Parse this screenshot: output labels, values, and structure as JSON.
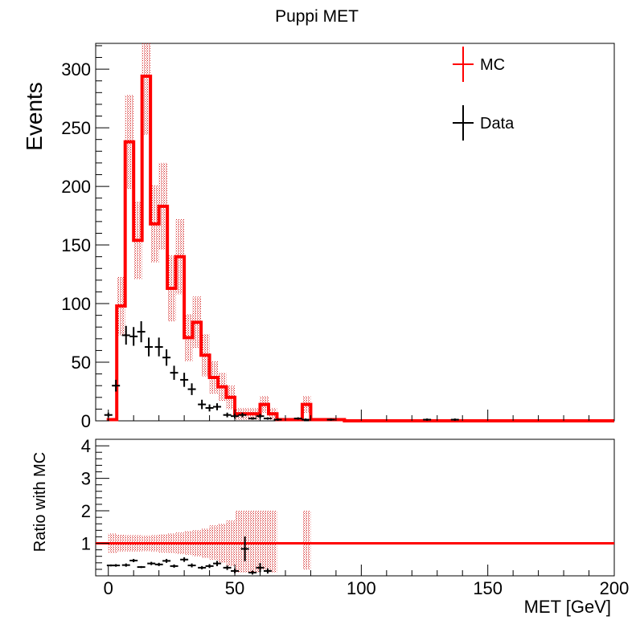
{
  "chart_data": {
    "type": "histogram",
    "title": "Puppi MET",
    "x_bin_width": 3.33,
    "x_bin_starts": [
      0,
      3.33,
      6.67,
      10,
      13.33,
      16.67,
      20,
      23.33,
      26.67,
      30,
      33.33,
      36.67,
      40,
      43.33,
      46.67,
      50,
      53.33,
      56.67,
      60,
      63.33,
      66.67,
      70,
      73.33,
      76.67,
      80,
      83.33,
      86.67,
      90
    ],
    "xlim": [
      -5,
      200
    ],
    "top_panel": {
      "ylabel": "Events",
      "ylim": [
        0,
        322
      ],
      "y_ticks": [
        0,
        50,
        100,
        150,
        200,
        250,
        300
      ],
      "legend": {
        "placement": "top-right",
        "entries": [
          {
            "label": "MC",
            "color": "#ff0000"
          },
          {
            "label": "Data",
            "color": "#000000"
          }
        ]
      },
      "series": [
        {
          "name": "MC",
          "color": "#ff0000",
          "style": "step",
          "values": [
            1,
            98,
            238,
            154,
            294,
            168,
            183,
            113,
            140,
            71,
            84,
            56,
            37,
            29,
            20,
            6,
            6,
            6,
            14,
            6,
            1,
            1,
            1,
            14,
            1,
            1,
            1,
            1
          ],
          "uncertainty": [
            1,
            25,
            40,
            33,
            50,
            33,
            37,
            28,
            32,
            20,
            22,
            18,
            14,
            12,
            10,
            5,
            5,
            5,
            7,
            5,
            1,
            1,
            1,
            7,
            1,
            1,
            1,
            1
          ]
        },
        {
          "name": "Data",
          "color": "#000000",
          "style": "points",
          "x": [
            0,
            3,
            7,
            10,
            13,
            16,
            20,
            23,
            26,
            30,
            33,
            37,
            40,
            43,
            47,
            50,
            53,
            57,
            60,
            63,
            67,
            75,
            78,
            88,
            126,
            137
          ],
          "y": [
            5,
            30,
            73,
            72,
            76,
            63,
            63,
            54,
            41,
            35,
            27,
            14,
            11,
            12,
            5,
            4,
            5,
            2,
            4,
            2,
            1,
            2,
            1,
            1,
            1,
            1
          ],
          "yerr": [
            2,
            5,
            8,
            8,
            9,
            8,
            8,
            7,
            6,
            6,
            5,
            4,
            3,
            3,
            2,
            2,
            2,
            1,
            2,
            1,
            1,
            1,
            1,
            1,
            1,
            1
          ]
        }
      ]
    },
    "ratio_panel": {
      "ylabel": "Ratio with MC",
      "xlabel": "MET [GeV]",
      "ylim": [
        0,
        4.2
      ],
      "y_ticks": [
        1,
        2,
        3,
        4
      ],
      "x_ticks": [
        0,
        50,
        100,
        150,
        200
      ],
      "reference_line": 1,
      "band": [
        {
          "x0": 0,
          "x1": 66.67,
          "low": [
            0.7,
            0.74,
            0.75,
            0.75,
            0.76,
            0.74,
            0.72,
            0.7,
            0.68,
            0.65,
            0.6,
            0.55,
            0.5,
            0.4,
            0.3,
            0.1,
            0.1,
            0.1,
            0.2,
            0.1
          ],
          "high": [
            1.3,
            1.27,
            1.25,
            1.25,
            1.24,
            1.25,
            1.28,
            1.3,
            1.33,
            1.37,
            1.4,
            1.45,
            1.55,
            1.6,
            1.7,
            2.0,
            2.0,
            2.0,
            2.0,
            2.0
          ]
        },
        {
          "x0": 76.67,
          "x1": 80,
          "low": [
            0.2
          ],
          "high": [
            2.0
          ]
        }
      ],
      "points": {
        "x": [
          1,
          3,
          7,
          10,
          13,
          17,
          20,
          23,
          26,
          30,
          33,
          37,
          40,
          43,
          47,
          50,
          54,
          57,
          60,
          63
        ],
        "y": [
          0.32,
          0.32,
          0.33,
          0.47,
          0.27,
          0.38,
          0.35,
          0.46,
          0.3,
          0.5,
          0.32,
          0.25,
          0.3,
          0.38,
          0.25,
          0.15,
          0.83,
          0.1,
          0.25,
          0.15
        ],
        "yerr": [
          0.03,
          0.04,
          0.05,
          0.05,
          0.03,
          0.05,
          0.05,
          0.06,
          0.05,
          0.07,
          0.06,
          0.05,
          0.06,
          0.08,
          0.07,
          0.07,
          0.38,
          0.06,
          0.14,
          0.08
        ]
      }
    },
    "grid": false
  }
}
